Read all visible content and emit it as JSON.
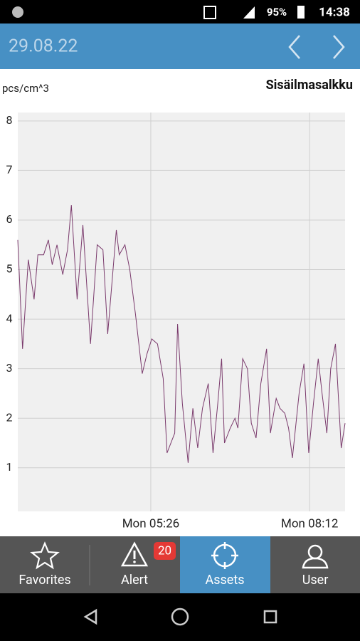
{
  "status_bar": {
    "battery": "95%",
    "time": "14:38"
  },
  "header": {
    "date": "29.08.22"
  },
  "chart_data": {
    "type": "line",
    "title": "Sisäilmasalkku",
    "y_label": "pcs/cm^3",
    "color": "#7a3a6c",
    "grid": true,
    "x": [
      187,
      192,
      198,
      204,
      208,
      214,
      219,
      223,
      228,
      234,
      239,
      243,
      249,
      255,
      263,
      270,
      276,
      281,
      290,
      293,
      299,
      304,
      310,
      317,
      322,
      327,
      333,
      339,
      343,
      351,
      354,
      359,
      365,
      370,
      375,
      380,
      386,
      391,
      396,
      400,
      403,
      409,
      414,
      417,
      422,
      427,
      431,
      436,
      441,
      447,
      451,
      457,
      461,
      466,
      470,
      474,
      481,
      486,
      491,
      496,
      501,
      505,
      510,
      514,
      519,
      525,
      529
    ],
    "values": [
      5.6,
      3.4,
      5.2,
      4.4,
      5.3,
      5.3,
      5.6,
      5.1,
      5.5,
      4.9,
      5.4,
      6.3,
      4.4,
      5.9,
      3.5,
      5.5,
      5.4,
      3.7,
      5.8,
      5.3,
      5.5,
      5.0,
      4.1,
      2.9,
      3.3,
      3.6,
      3.5,
      2.8,
      1.3,
      1.7,
      3.9,
      2.3,
      1.1,
      2.2,
      1.4,
      2.2,
      2.7,
      1.3,
      2.3,
      3.2,
      1.5,
      1.8,
      2.0,
      1.8,
      3.2,
      3.0,
      1.9,
      1.6,
      2.7,
      3.4,
      1.7,
      2.4,
      2.2,
      2.1,
      1.8,
      1.2,
      2.5,
      3.1,
      1.3,
      2.3,
      3.2,
      2.5,
      1.7,
      3.0,
      3.5,
      1.4,
      1.9
    ],
    "xlim": [
      187,
      529
    ],
    "xticks": [
      {
        "value": 326,
        "label": "Mon 05:26"
      },
      {
        "value": 492,
        "label": "Mon 08:12"
      }
    ],
    "ylim": [
      0.12,
      8.17
    ],
    "yticks": [
      1,
      2,
      3,
      4,
      5,
      6,
      7,
      8
    ]
  },
  "nav": {
    "items": [
      {
        "label": "Favorites"
      },
      {
        "label": "Alert"
      },
      {
        "label": "Assets"
      },
      {
        "label": "User"
      }
    ],
    "badge": "20"
  }
}
